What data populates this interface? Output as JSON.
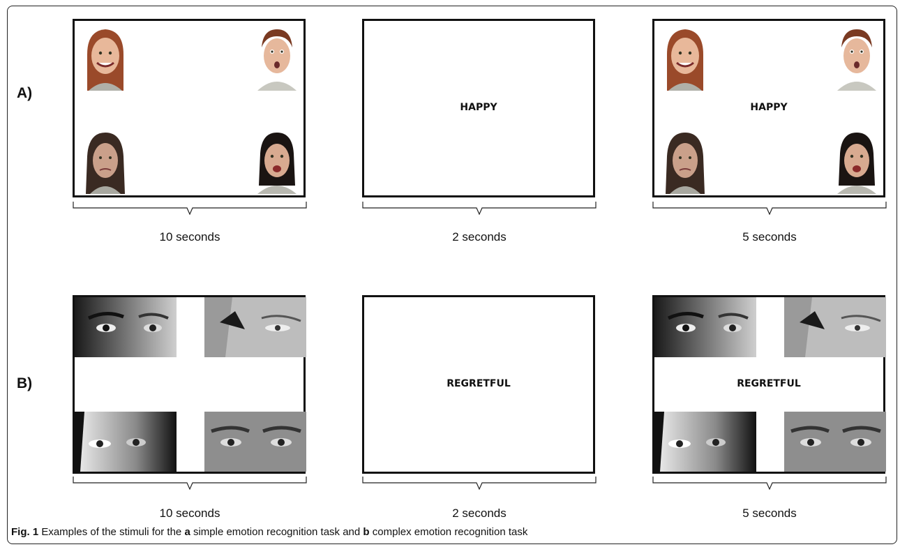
{
  "rows": [
    {
      "label": "A)",
      "panels": [
        {
          "word": "",
          "stimuli": "faces",
          "duration": "10 seconds"
        },
        {
          "word": "HAPPY",
          "stimuli": "none",
          "duration": "2 seconds"
        },
        {
          "word": "HAPPY",
          "stimuli": "faces",
          "duration": "5 seconds"
        }
      ]
    },
    {
      "label": "B)",
      "panels": [
        {
          "word": "",
          "stimuli": "eyes",
          "duration": "10 seconds"
        },
        {
          "word": "REGRETFUL",
          "stimuli": "none",
          "duration": "2 seconds"
        },
        {
          "word": "REGRETFUL",
          "stimuli": "eyes",
          "duration": "5 seconds"
        }
      ]
    }
  ],
  "caption": {
    "fig_label": "Fig. 1",
    "part1": " Examples of the stimuli for the ",
    "a": "a",
    "part2": " simple emotion recognition task and ",
    "b": "b",
    "part3": " complex emotion recognition task"
  },
  "colors": {
    "border": "#111111",
    "text": "#111111"
  }
}
